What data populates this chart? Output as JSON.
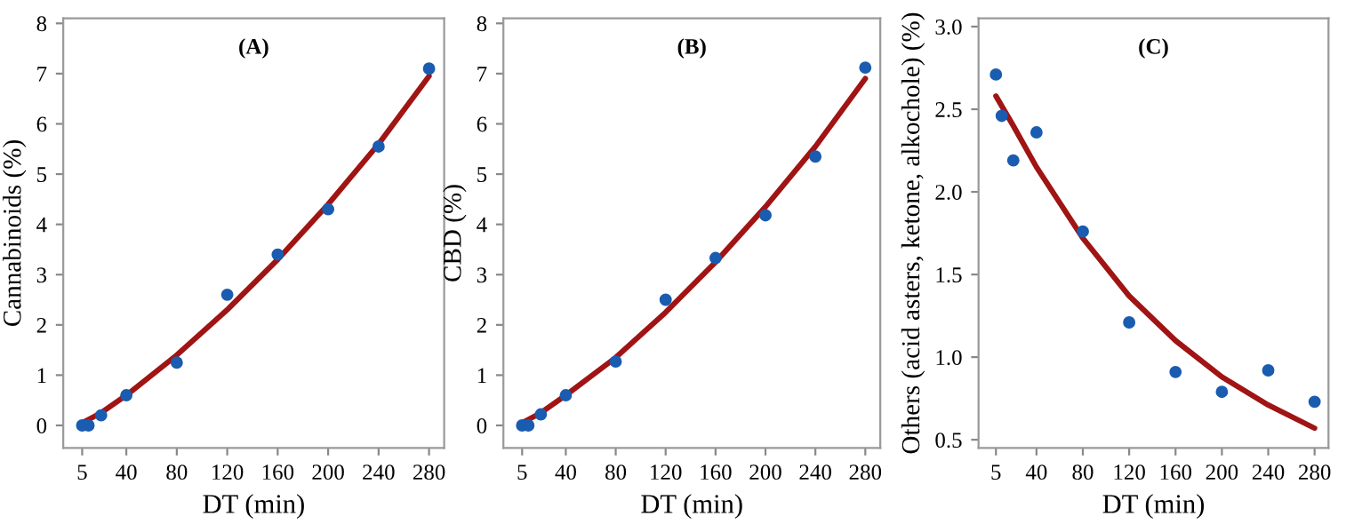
{
  "chart_data": [
    {
      "type": "scatter",
      "xlabel": "DT (min)",
      "ylabel": "Cannabinoids (%)",
      "annotations": [
        "(A)"
      ],
      "xlim": [
        -10,
        292
      ],
      "xticks": [
        5,
        40,
        80,
        120,
        160,
        200,
        240,
        280
      ],
      "ylim": [
        -0.45,
        8.1
      ],
      "yticks": [
        0,
        1,
        2,
        3,
        4,
        5,
        6,
        7,
        8
      ],
      "grid": false,
      "legend": false,
      "series": [
        {
          "color": "#1a5cb0",
          "marker": "circle",
          "x": [
            5,
            10,
            20,
            40,
            80,
            120,
            160,
            200,
            240,
            280
          ],
          "values": [
            0,
            0,
            0.2,
            0.6,
            1.25,
            2.6,
            3.4,
            4.3,
            5.55,
            7.1
          ]
        },
        {
          "type": "line",
          "color": "#a01414",
          "marker": "none",
          "line_style": "solid",
          "x": [
            5,
            20,
            40,
            80,
            120,
            160,
            200,
            240,
            280
          ],
          "values": [
            0.05,
            0.25,
            0.6,
            1.4,
            2.3,
            3.3,
            4.4,
            5.6,
            6.95
          ]
        }
      ]
    },
    {
      "type": "scatter",
      "xlabel": "DT (min)",
      "ylabel": "CBD (%)",
      "annotations": [
        "(B)"
      ],
      "xlim": [
        -10,
        292
      ],
      "xticks": [
        5,
        40,
        80,
        120,
        160,
        200,
        240,
        280
      ],
      "ylim": [
        -0.45,
        8.1
      ],
      "yticks": [
        0,
        1,
        2,
        3,
        4,
        5,
        6,
        7,
        8
      ],
      "grid": false,
      "legend": false,
      "series": [
        {
          "color": "#1a5cb0",
          "marker": "circle",
          "x": [
            5,
            10,
            20,
            40,
            80,
            120,
            160,
            200,
            240,
            280
          ],
          "values": [
            0,
            0,
            0.22,
            0.6,
            1.27,
            2.5,
            3.33,
            4.18,
            5.35,
            7.12
          ]
        },
        {
          "type": "line",
          "color": "#a01414",
          "marker": "none",
          "line_style": "solid",
          "x": [
            5,
            20,
            40,
            80,
            120,
            160,
            200,
            240,
            280
          ],
          "values": [
            0.05,
            0.25,
            0.6,
            1.35,
            2.25,
            3.25,
            4.35,
            5.55,
            6.9
          ]
        }
      ]
    },
    {
      "type": "scatter",
      "xlabel": "DT (min)",
      "ylabel": "Others (acid asters, ketone, alkochole) (%)",
      "annotations": [
        "(C)"
      ],
      "xlim": [
        -10,
        292
      ],
      "xticks": [
        5,
        40,
        80,
        120,
        160,
        200,
        240,
        280
      ],
      "ylim": [
        0.45,
        3.05
      ],
      "yticks": [
        {
          "value": 0.5,
          "label": "0.5"
        },
        {
          "value": 1.0,
          "label": "1.0"
        },
        {
          "value": 1.5,
          "label": "1.5"
        },
        {
          "value": 2.0,
          "label": "2.0"
        },
        {
          "value": 2.5,
          "label": "2.5"
        },
        {
          "value": 3.0,
          "label": "3.0"
        }
      ],
      "grid": false,
      "legend": false,
      "series": [
        {
          "color": "#1a5cb0",
          "marker": "circle",
          "x": [
            5,
            10,
            20,
            40,
            80,
            120,
            160,
            200,
            240,
            280
          ],
          "values": [
            2.71,
            2.46,
            2.19,
            2.36,
            1.76,
            1.21,
            0.91,
            0.79,
            0.92,
            0.73
          ]
        },
        {
          "type": "line",
          "color": "#a01414",
          "marker": "none",
          "line_style": "solid",
          "x": [
            5,
            20,
            40,
            80,
            120,
            160,
            200,
            240,
            280
          ],
          "values": [
            2.58,
            2.4,
            2.15,
            1.72,
            1.37,
            1.1,
            0.88,
            0.71,
            0.57
          ]
        }
      ]
    }
  ]
}
